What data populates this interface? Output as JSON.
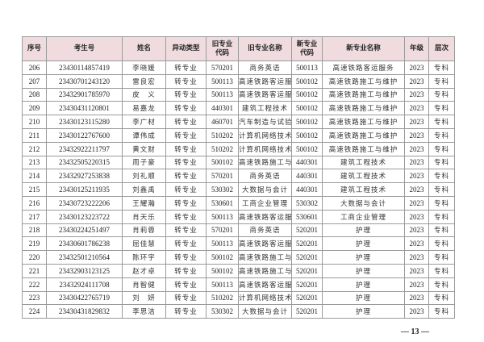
{
  "table": {
    "headers": [
      "序号",
      "考生号",
      "姓名",
      "异动类型",
      "旧专业\n代码",
      "旧专业名称",
      "新专业\n代码",
      "新专业名称",
      "年级",
      "层次"
    ],
    "rows": [
      [
        "206",
        "23430114857419",
        "李晓媛",
        "转专业",
        "570201",
        "商务英语",
        "500113",
        "高速铁路客运服务",
        "2023",
        "专科"
      ],
      [
        "207",
        "23430701243120",
        "雷良宏",
        "转专业",
        "500113",
        "高速铁路客运服务",
        "500102",
        "高速铁路施工与维护",
        "2023",
        "专科"
      ],
      [
        "208",
        "23432901785970",
        "皮　义",
        "转专业",
        "500113",
        "高速铁路客运服务",
        "500102",
        "高速铁路施工与维护",
        "2023",
        "专科"
      ],
      [
        "209",
        "23430431120801",
        "易嘉龙",
        "转专业",
        "440301",
        "建筑工程技术",
        "500102",
        "高速铁路施工与维护",
        "2023",
        "专科"
      ],
      [
        "210",
        "23430123115280",
        "李广材",
        "转专业",
        "460701",
        "汽车制造与试验技术",
        "500102",
        "高速铁路施工与维护",
        "2023",
        "专科"
      ],
      [
        "211",
        "23430122767600",
        "谭伟成",
        "转专业",
        "510202",
        "计算机网络技术",
        "500102",
        "高速铁路施工与维护",
        "2023",
        "专科"
      ],
      [
        "212",
        "23432922211797",
        "黄文财",
        "转专业",
        "510202",
        "计算机网络技术",
        "500102",
        "高速铁路施工与维护",
        "2023",
        "专科"
      ],
      [
        "213",
        "23432505220315",
        "周子豪",
        "转专业",
        "500102",
        "高速铁路施工与维护",
        "440301",
        "建筑工程技术",
        "2023",
        "专科"
      ],
      [
        "214",
        "23432927253838",
        "刘礼顺",
        "转专业",
        "570201",
        "商务英语",
        "440301",
        "建筑工程技术",
        "2023",
        "专科"
      ],
      [
        "215",
        "23430125211935",
        "刘鑫禹",
        "转专业",
        "530302",
        "大数据与会计",
        "440301",
        "建筑工程技术",
        "2023",
        "专科"
      ],
      [
        "216",
        "23430723222206",
        "王耀瀚",
        "转专业",
        "530601",
        "工商企业管理",
        "530302",
        "大数据与会计",
        "2023",
        "专科"
      ],
      [
        "217",
        "23430123223722",
        "肖天乐",
        "转专业",
        "500113",
        "高速铁路客运服务",
        "530601",
        "工商企业管理",
        "2023",
        "专科"
      ],
      [
        "218",
        "23430224251497",
        "肖莉蓉",
        "转专业",
        "570201",
        "商务英语",
        "520201",
        "护理",
        "2023",
        "专科"
      ],
      [
        "219",
        "23430601786238",
        "屈佳慧",
        "转专业",
        "500113",
        "高速铁路客运服务",
        "520201",
        "护理",
        "2023",
        "专科"
      ],
      [
        "220",
        "23432501210564",
        "陈环宇",
        "转专业",
        "500102",
        "高速铁路施工与维护",
        "520201",
        "护理",
        "2023",
        "专科"
      ],
      [
        "221",
        "23432903123125",
        "赵才卓",
        "转专业",
        "500102",
        "高速铁路施工与维护",
        "520201",
        "护理",
        "2023",
        "专科"
      ],
      [
        "222",
        "23432924111708",
        "肖智健",
        "转专业",
        "500113",
        "高速铁路客运服务",
        "520201",
        "护理",
        "2023",
        "专科"
      ],
      [
        "223",
        "23430422765719",
        "刘　妍",
        "转专业",
        "510202",
        "计算机网络技术",
        "520201",
        "护理",
        "2023",
        "专科"
      ],
      [
        "224",
        "23430431829832",
        "李思洁",
        "转专业",
        "530302",
        "大数据与会计",
        "520201",
        "护理",
        "2023",
        "专科"
      ]
    ]
  },
  "footer": {
    "page_number": "— 13 —"
  },
  "colors": {
    "header_bg": "#f0dcdf",
    "border": "#9a9a9a"
  }
}
